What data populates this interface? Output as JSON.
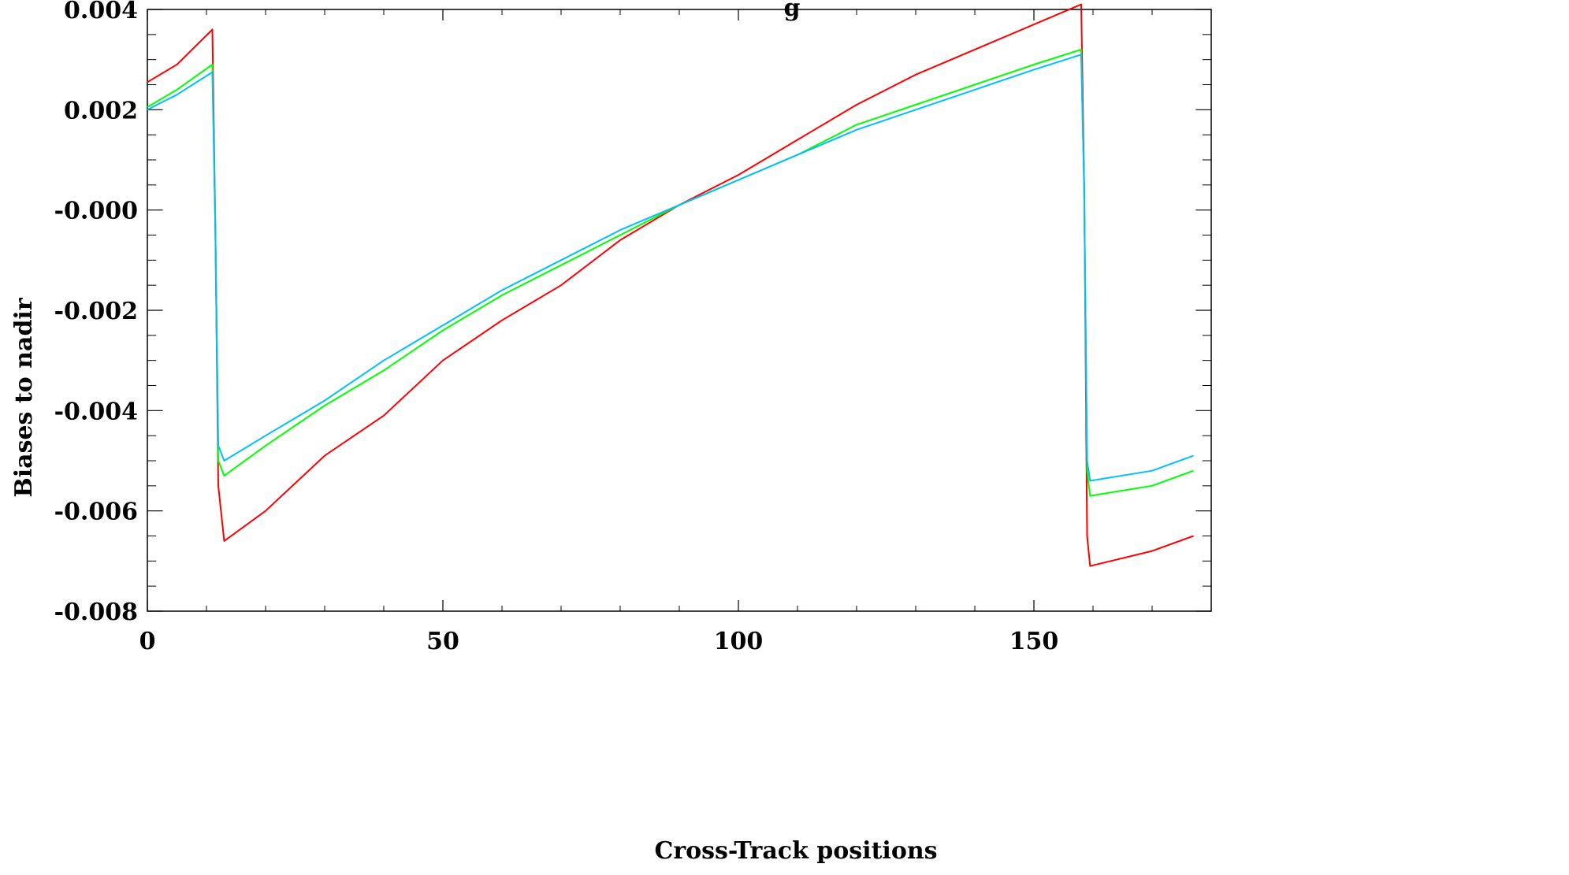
{
  "chart_data": {
    "type": "line",
    "title_fragment": "g",
    "xlabel": "Cross-Track positions",
    "ylabel": "Biases to nadir",
    "xlim": [
      0,
      180
    ],
    "ylim": [
      -0.008,
      0.004
    ],
    "x_ticks": [
      0,
      50,
      100,
      150
    ],
    "x_tick_labels": [
      "0",
      "50",
      "100",
      "150"
    ],
    "y_ticks": [
      -0.008,
      -0.006,
      -0.004,
      -0.002,
      0.0,
      0.002,
      0.004
    ],
    "y_tick_labels": [
      "-0.008",
      "-0.006",
      "-0.004",
      "-0.002",
      "-0.000",
      "0.002",
      "0.004"
    ],
    "grid": false,
    "legend": "none",
    "series": [
      {
        "color": "#ff0000",
        "points": [
          [
            0,
            0.00255
          ],
          [
            5,
            0.0029
          ],
          [
            11,
            0.0036
          ],
          [
            11.5,
            -0.0004
          ],
          [
            12,
            -0.0055
          ],
          [
            13,
            -0.0066
          ],
          [
            20,
            -0.006
          ],
          [
            30,
            -0.0049
          ],
          [
            40,
            -0.0041
          ],
          [
            50,
            -0.003
          ],
          [
            60,
            -0.0022
          ],
          [
            70,
            -0.0015
          ],
          [
            80,
            -0.0006
          ],
          [
            90,
            0.0001
          ],
          [
            100,
            0.0007
          ],
          [
            110,
            0.0014
          ],
          [
            120,
            0.0021
          ],
          [
            130,
            0.0027
          ],
          [
            140,
            0.0032
          ],
          [
            150,
            0.0037
          ],
          [
            158,
            0.0041
          ],
          [
            158.5,
            0.0005
          ],
          [
            159,
            -0.0065
          ],
          [
            159.5,
            -0.0071
          ],
          [
            170,
            -0.0068
          ],
          [
            177,
            -0.0065
          ]
        ]
      },
      {
        "color": "#00ff00",
        "points": [
          [
            0,
            0.00205
          ],
          [
            5,
            0.0024
          ],
          [
            11,
            0.0029
          ],
          [
            11.5,
            -0.0004
          ],
          [
            12,
            -0.005
          ],
          [
            13,
            -0.0053
          ],
          [
            20,
            -0.0047
          ],
          [
            30,
            -0.0039
          ],
          [
            40,
            -0.0032
          ],
          [
            50,
            -0.0024
          ],
          [
            60,
            -0.0017
          ],
          [
            70,
            -0.0011
          ],
          [
            80,
            -0.0005
          ],
          [
            90,
            0.0001
          ],
          [
            100,
            0.0006
          ],
          [
            110,
            0.0011
          ],
          [
            120,
            0.0017
          ],
          [
            130,
            0.0021
          ],
          [
            140,
            0.0025
          ],
          [
            150,
            0.0029
          ],
          [
            158,
            0.0032
          ],
          [
            158.5,
            0.0004
          ],
          [
            159,
            -0.0052
          ],
          [
            159.5,
            -0.0057
          ],
          [
            170,
            -0.0055
          ],
          [
            177,
            -0.0052
          ]
        ]
      },
      {
        "color": "#00bfff",
        "points": [
          [
            0,
            0.002
          ],
          [
            5,
            0.0023
          ],
          [
            11,
            0.00275
          ],
          [
            11.5,
            -0.0004
          ],
          [
            12,
            -0.0047
          ],
          [
            13,
            -0.005
          ],
          [
            20,
            -0.0045
          ],
          [
            30,
            -0.0038
          ],
          [
            40,
            -0.003
          ],
          [
            50,
            -0.0023
          ],
          [
            60,
            -0.0016
          ],
          [
            70,
            -0.001
          ],
          [
            80,
            -0.0004
          ],
          [
            90,
            0.0001
          ],
          [
            100,
            0.0006
          ],
          [
            110,
            0.0011
          ],
          [
            120,
            0.0016
          ],
          [
            130,
            0.002
          ],
          [
            140,
            0.0024
          ],
          [
            150,
            0.0028
          ],
          [
            158,
            0.0031
          ],
          [
            158.5,
            0.0004
          ],
          [
            159,
            -0.005
          ],
          [
            159.5,
            -0.0054
          ],
          [
            170,
            -0.0052
          ],
          [
            177,
            -0.0049
          ]
        ]
      }
    ]
  }
}
